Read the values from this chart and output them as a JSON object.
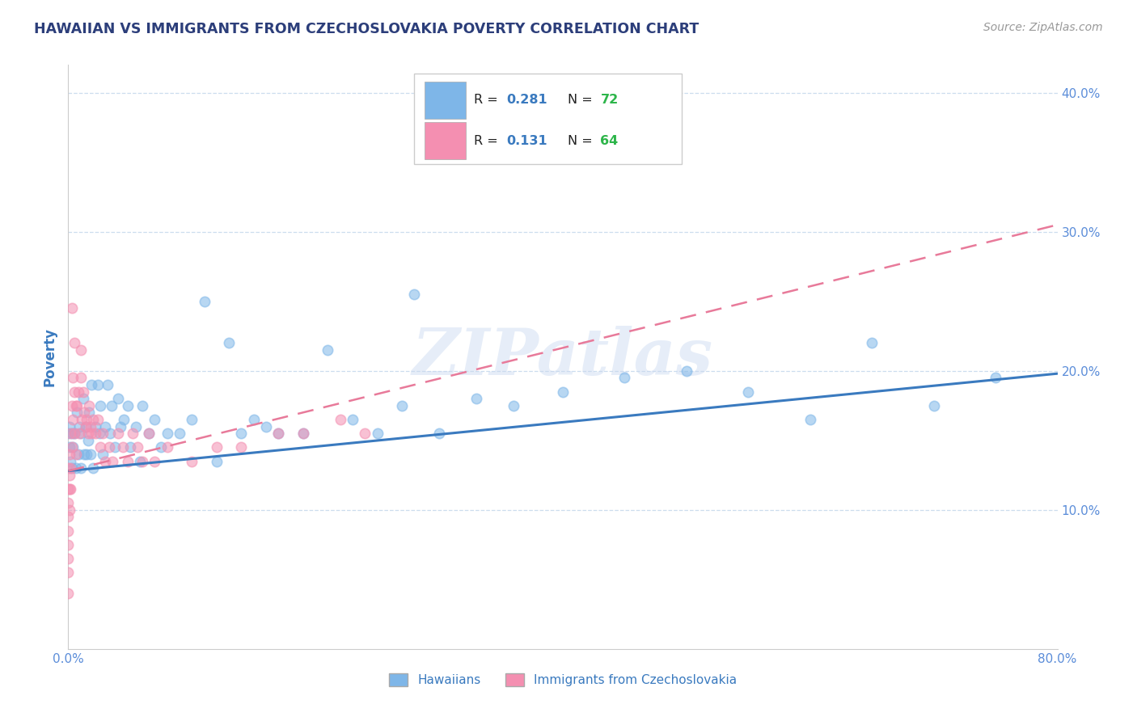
{
  "title": "HAWAIIAN VS IMMIGRANTS FROM CZECHOSLOVAKIA POVERTY CORRELATION CHART",
  "source": "Source: ZipAtlas.com",
  "ylabel_text": "Poverty",
  "watermark": "ZIPatlas",
  "blue_color": "#7eb6e8",
  "pink_color": "#f48fb1",
  "blue_line_color": "#3a7abf",
  "pink_line_color": "#e87a9a",
  "title_color": "#2c3e7a",
  "axis_label_color": "#3a7abf",
  "tick_color": "#5b8dd9",
  "source_color": "#999999",
  "legend_r_color": "#3a7abf",
  "legend_n_color": "#2db54a",
  "background_color": "#ffffff",
  "grid_color": "#ccddee",
  "xmin": 0.0,
  "xmax": 0.8,
  "ymin": 0.0,
  "ymax": 0.42,
  "blue_trend_x0": 0.0,
  "blue_trend_y0": 0.128,
  "blue_trend_x1": 0.8,
  "blue_trend_y1": 0.198,
  "pink_trend_x0": 0.0,
  "pink_trend_y0": 0.128,
  "pink_trend_x1": 0.8,
  "pink_trend_y1": 0.305,
  "hawaiians_x": [
    0.0,
    0.001,
    0.001,
    0.002,
    0.003,
    0.003,
    0.004,
    0.005,
    0.006,
    0.007,
    0.008,
    0.009,
    0.01,
    0.01,
    0.012,
    0.013,
    0.014,
    0.015,
    0.016,
    0.017,
    0.018,
    0.019,
    0.02,
    0.022,
    0.024,
    0.025,
    0.026,
    0.028,
    0.03,
    0.032,
    0.034,
    0.035,
    0.038,
    0.04,
    0.042,
    0.045,
    0.048,
    0.05,
    0.055,
    0.058,
    0.06,
    0.065,
    0.07,
    0.075,
    0.08,
    0.09,
    0.1,
    0.11,
    0.12,
    0.13,
    0.14,
    0.15,
    0.16,
    0.17,
    0.19,
    0.21,
    0.23,
    0.25,
    0.27,
    0.3,
    0.33,
    0.36,
    0.4,
    0.45,
    0.5,
    0.55,
    0.6,
    0.65,
    0.7,
    0.75,
    0.38,
    0.28
  ],
  "hawaiians_y": [
    0.155,
    0.145,
    0.16,
    0.135,
    0.155,
    0.13,
    0.145,
    0.155,
    0.13,
    0.17,
    0.14,
    0.16,
    0.155,
    0.13,
    0.18,
    0.14,
    0.16,
    0.14,
    0.15,
    0.17,
    0.14,
    0.19,
    0.13,
    0.16,
    0.19,
    0.155,
    0.175,
    0.14,
    0.16,
    0.19,
    0.155,
    0.175,
    0.145,
    0.18,
    0.16,
    0.165,
    0.175,
    0.145,
    0.16,
    0.135,
    0.175,
    0.155,
    0.165,
    0.145,
    0.155,
    0.155,
    0.165,
    0.25,
    0.135,
    0.22,
    0.155,
    0.165,
    0.16,
    0.155,
    0.155,
    0.215,
    0.165,
    0.155,
    0.175,
    0.155,
    0.18,
    0.175,
    0.185,
    0.195,
    0.2,
    0.185,
    0.165,
    0.22,
    0.175,
    0.195,
    0.36,
    0.255
  ],
  "immigrants_x": [
    0.0,
    0.0,
    0.0,
    0.0,
    0.0,
    0.0,
    0.0,
    0.0,
    0.0,
    0.001,
    0.001,
    0.001,
    0.001,
    0.002,
    0.002,
    0.002,
    0.003,
    0.003,
    0.004,
    0.004,
    0.005,
    0.005,
    0.006,
    0.006,
    0.007,
    0.008,
    0.009,
    0.01,
    0.011,
    0.012,
    0.013,
    0.014,
    0.015,
    0.016,
    0.017,
    0.018,
    0.019,
    0.02,
    0.022,
    0.024,
    0.026,
    0.028,
    0.03,
    0.033,
    0.036,
    0.04,
    0.044,
    0.048,
    0.052,
    0.056,
    0.06,
    0.065,
    0.07,
    0.08,
    0.1,
    0.12,
    0.14,
    0.17,
    0.19,
    0.22,
    0.24,
    0.01,
    0.005,
    0.003
  ],
  "immigrants_y": [
    0.13,
    0.115,
    0.105,
    0.095,
    0.085,
    0.075,
    0.065,
    0.055,
    0.04,
    0.14,
    0.125,
    0.115,
    0.1,
    0.155,
    0.13,
    0.115,
    0.175,
    0.145,
    0.195,
    0.165,
    0.185,
    0.155,
    0.175,
    0.14,
    0.175,
    0.185,
    0.155,
    0.195,
    0.165,
    0.185,
    0.17,
    0.16,
    0.165,
    0.155,
    0.175,
    0.16,
    0.155,
    0.165,
    0.155,
    0.165,
    0.145,
    0.155,
    0.135,
    0.145,
    0.135,
    0.155,
    0.145,
    0.135,
    0.155,
    0.145,
    0.135,
    0.155,
    0.135,
    0.145,
    0.135,
    0.145,
    0.145,
    0.155,
    0.155,
    0.165,
    0.155,
    0.215,
    0.22,
    0.245
  ]
}
